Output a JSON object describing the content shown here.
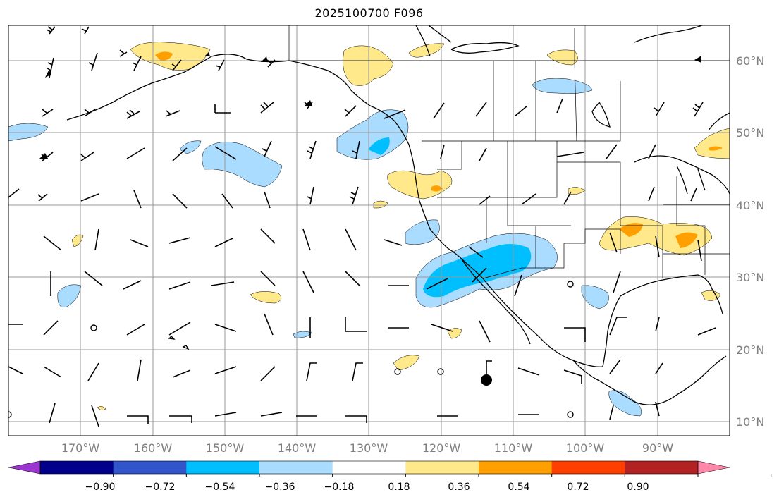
{
  "title": "2025100700 F096",
  "lat_labels": [
    "60°N",
    "50°N",
    "40°N",
    "30°N",
    "20°N",
    "10°N"
  ],
  "lon_labels": [
    "170°W",
    "160°W",
    "150°W",
    "140°W",
    "130°W",
    "120°W",
    "110°W",
    "100°W",
    "90°W"
  ],
  "colorbar": {
    "ticks": [
      "−0.90",
      "−0.72",
      "−0.54",
      "−0.36",
      "−0.18",
      "0.18",
      "0.36",
      "0.54",
      "0.72",
      "0.90"
    ],
    "colors": [
      "#9a35d0",
      "#00008b",
      "#3355cc",
      "#00bfff",
      "#aadcff",
      "#ffffff",
      "#ffe98a",
      "#ffa000",
      "#ff3f00",
      "#b22222",
      "#ff88aa"
    ]
  },
  "colors": {
    "neg_light": "#aadcff",
    "neg_mid": "#00bfff",
    "pos_light": "#ffe98a",
    "pos_mid": "#ffa000",
    "grid": "#999999",
    "coast": "#000000"
  }
}
